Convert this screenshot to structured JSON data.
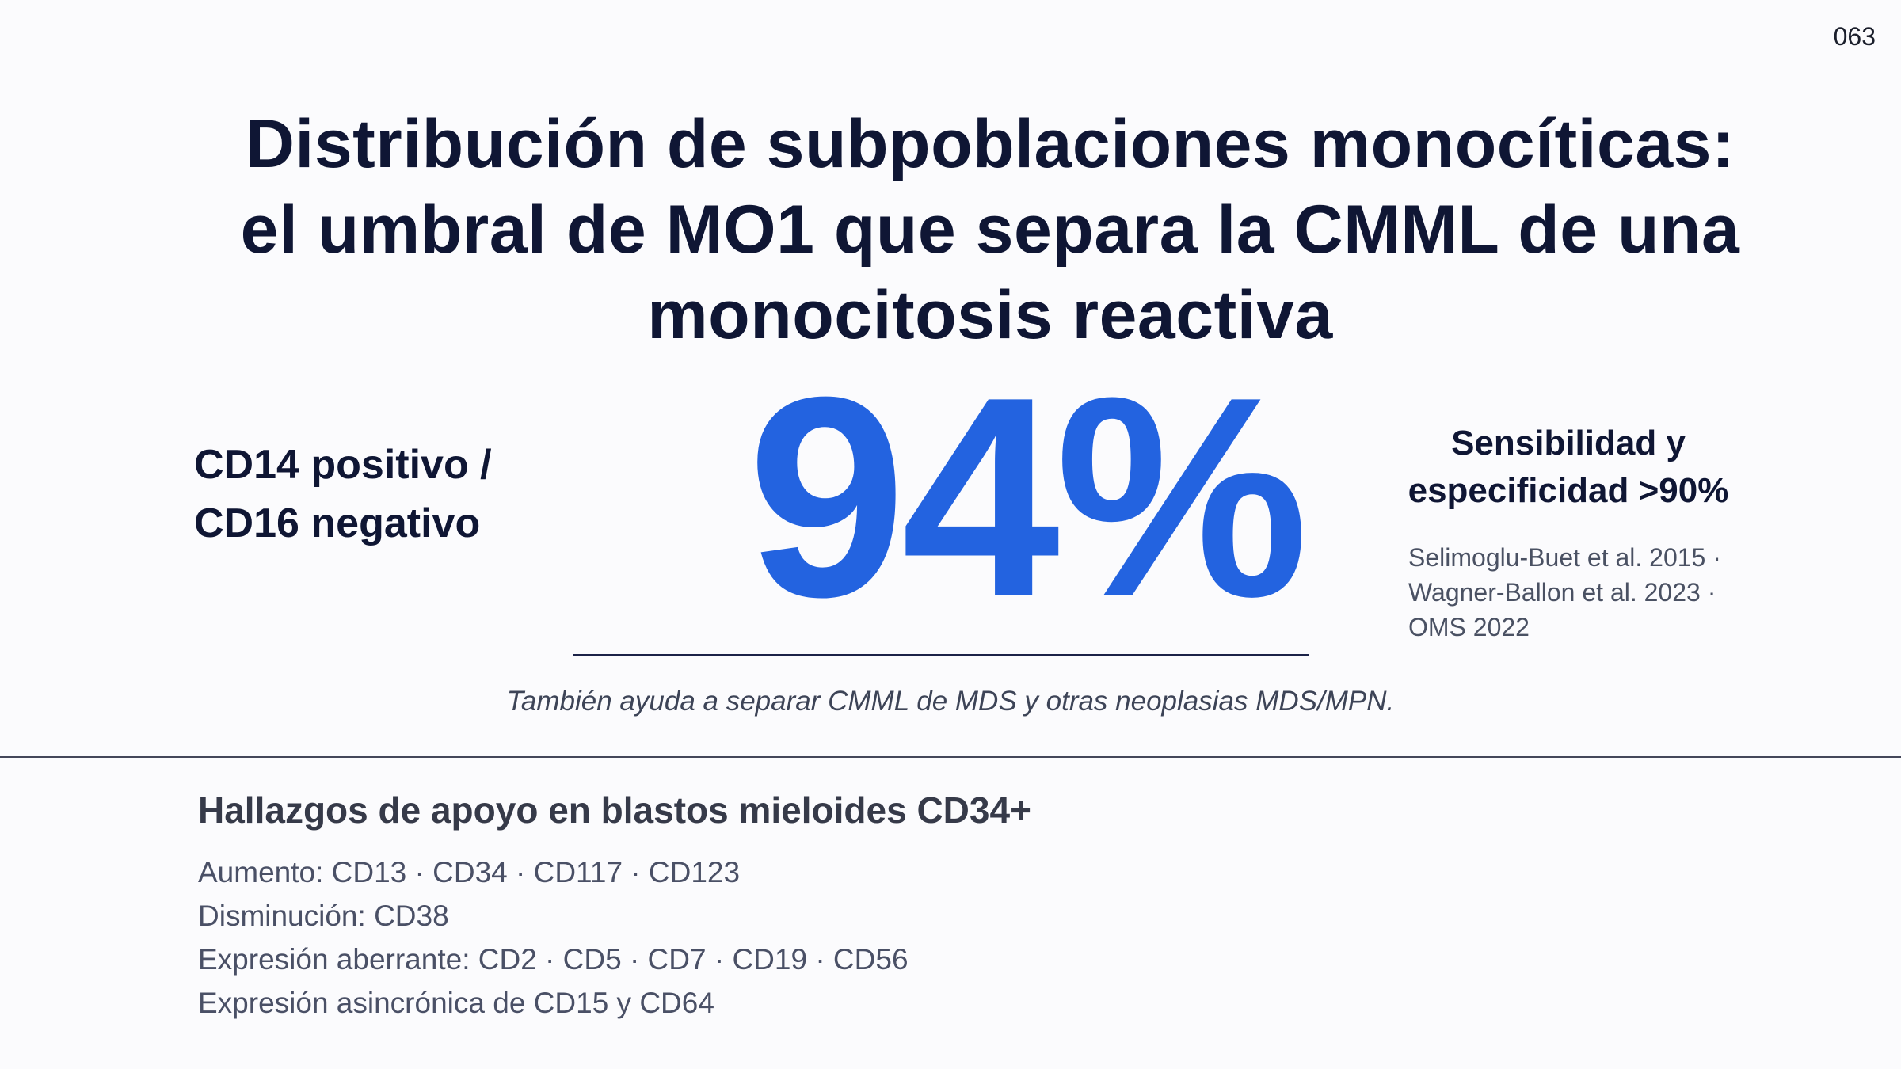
{
  "page_number": "063",
  "title": {
    "line1": "Distribución de subpoblaciones monocíticas:",
    "line2": "el umbral de MO1 que separa la CMML de una",
    "line3": "monocitosis reactiva"
  },
  "left_label": {
    "line1": "CD14 positivo /",
    "line2": "CD16 negativo"
  },
  "big_stat": "94%",
  "right_label": {
    "line1": "Sensibilidad y",
    "line2": "especificidad >90%"
  },
  "references": {
    "line1": "Selimoglu-Buet et al. 2015 ·",
    "line2": "Wagner-Ballon et al. 2023 ·",
    "line3": "OMS 2022"
  },
  "note": "También ayuda a separar CMML de MDS y otras neoplasias MDS/MPN.",
  "support": {
    "title": "Hallazgos de apoyo en blastos mieloides CD34+",
    "items": [
      "Aumento: CD13 · CD34 · CD117 · CD123",
      "Disminución: CD38",
      "Expresión aberrante: CD2 · CD5 · CD7 · CD19 · CD56",
      "Expresión asincrónica de CD15 y CD64"
    ]
  },
  "colors": {
    "accent": "#2363e0",
    "heading": "#0f1634",
    "background": "#fbfbfd"
  }
}
